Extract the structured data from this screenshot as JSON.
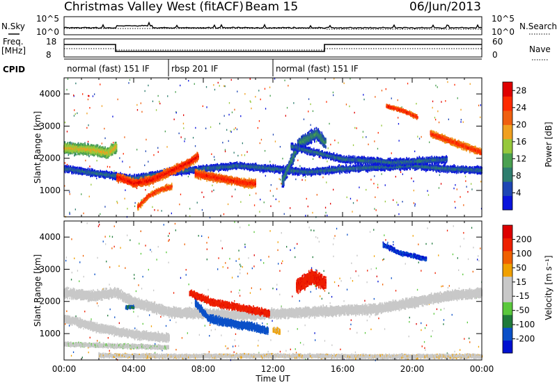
{
  "header": {
    "station": "Christmas Valley West (fitACF)",
    "beam": "Beam 15",
    "date": "06/Jun/2013"
  },
  "strips": {
    "nsky_label": "N.Sky",
    "nsearch_label": "N.Search",
    "noise_ticks": [
      "10^5",
      "10^0"
    ],
    "freq_label_1": "Freq.",
    "freq_label_2": "[MHz]",
    "nave_label": "Nave",
    "freq_ticks": [
      "18",
      "8"
    ],
    "nave_ticks": [
      "60",
      "0"
    ],
    "cpid_label": "CPID"
  },
  "cpid_segments": [
    {
      "label": "normal (fast) 151 IF",
      "start_h": 0,
      "end_h": 6
    },
    {
      "label": "rbsp 201 IF",
      "start_h": 6,
      "end_h": 12
    },
    {
      "label": "normal (fast) 151 IF",
      "start_h": 12,
      "end_h": 24
    }
  ],
  "colors": {
    "power_scale": [
      "#0a14dc",
      "#1e46b4",
      "#2e7d6e",
      "#4aa050",
      "#96c83c",
      "#f0a020",
      "#f06010",
      "#ff2a00",
      "#e00000"
    ],
    "velocity_scale": [
      "#0010d0",
      "#0a50c8",
      "#1f7a3a",
      "#5ac83c",
      "#c8c8c8",
      "#c8c8c8",
      "#f0a000",
      "#f06000",
      "#ee2000",
      "#dd0000"
    ],
    "ground_scatter": "#c0c0c0"
  },
  "chart_data": [
    {
      "type": "heatmap",
      "panel": "power",
      "title": "Christmas Valley West (fitACF) Beam 15 06/Jun/2013",
      "xlabel": "Time UT",
      "ylabel": "Slant Range [km]",
      "xlim": [
        0,
        24
      ],
      "ylim": [
        180,
        4500
      ],
      "xticks": [
        "00:00",
        "04:00",
        "08:00",
        "12:00",
        "16:00",
        "20:00",
        "00:00"
      ],
      "yticks": [
        "1000",
        "2000",
        "3000",
        "4000"
      ],
      "colorbar": {
        "label": "Power [dB]",
        "ticks": [
          "4",
          "8",
          "12",
          "16",
          "20",
          "24",
          "28"
        ],
        "range": [
          0,
          30
        ]
      },
      "bands": [
        {
          "points": [
            [
              0,
              2350
            ],
            [
              1.5,
              2300
            ],
            [
              2.5,
              2200
            ],
            [
              3,
              2400
            ]
          ],
          "width": 400,
          "value": 18
        },
        {
          "points": [
            [
              0,
              1700
            ],
            [
              2,
              1550
            ],
            [
              4,
              1400
            ],
            [
              6,
              1600
            ],
            [
              8,
              1700
            ],
            [
              10,
              1800
            ],
            [
              12,
              1700
            ],
            [
              14,
              1600
            ],
            [
              16,
              1700
            ],
            [
              18,
              1750
            ],
            [
              20,
              1800
            ],
            [
              22,
              1700
            ],
            [
              24,
              1650
            ]
          ],
          "width": 250,
          "value": 8
        },
        {
          "points": [
            [
              3,
              1450
            ],
            [
              4,
              1250
            ],
            [
              5,
              1350
            ],
            [
              6,
              1600
            ],
            [
              7,
              1850
            ],
            [
              7.7,
              2100
            ]
          ],
          "width": 300,
          "value": 28
        },
        {
          "points": [
            [
              4.2,
              500
            ],
            [
              4.8,
              850
            ],
            [
              5.5,
              1050
            ],
            [
              6.2,
              1150
            ]
          ],
          "width": 200,
          "value": 26
        },
        {
          "points": [
            [
              7.5,
              1550
            ],
            [
              8.5,
              1450
            ],
            [
              9.5,
              1350
            ],
            [
              10.5,
              1250
            ],
            [
              11,
              1250
            ]
          ],
          "width": 300,
          "value": 27
        },
        {
          "points": [
            [
              12.5,
              1300
            ],
            [
              13.5,
              2500
            ],
            [
              14.5,
              2800
            ],
            [
              15,
              2500
            ]
          ],
          "width": 450,
          "value": 10
        },
        {
          "points": [
            [
              13,
              2400
            ],
            [
              16,
              2000
            ],
            [
              19,
              1900
            ],
            [
              22,
              2000
            ]
          ],
          "width": 250,
          "value": 8
        },
        {
          "points": [
            [
              18.5,
              3650
            ],
            [
              19.5,
              3500
            ],
            [
              20.3,
              3300
            ]
          ],
          "width": 150,
          "value": 27
        },
        {
          "points": [
            [
              21,
              2800
            ],
            [
              22.5,
              2500
            ],
            [
              24,
              2200
            ]
          ],
          "width": 250,
          "value": 26
        }
      ]
    },
    {
      "type": "heatmap",
      "panel": "velocity",
      "xlabel": "Time UT",
      "ylabel": "Slant Range [km]",
      "xlim": [
        0,
        24
      ],
      "ylim": [
        180,
        4500
      ],
      "xticks": [
        "00:00",
        "04:00",
        "08:00",
        "12:00",
        "16:00",
        "20:00",
        "00:00"
      ],
      "yticks": [
        "1000",
        "2000",
        "3000",
        "4000"
      ],
      "colorbar": {
        "label": "Velocity [m s⁻¹]",
        "ticks": [
          "200",
          "100",
          "50",
          "15",
          "-15",
          "-50",
          "-100",
          "-200"
        ],
        "range": [
          -250,
          250
        ]
      },
      "bands": [
        {
          "points": [
            [
              0,
              2300
            ],
            [
              1.5,
              2200
            ],
            [
              3,
              2300
            ],
            [
              4,
              2000
            ],
            [
              6,
              1700
            ],
            [
              10,
              1600
            ],
            [
              14,
              1700
            ],
            [
              18,
              1800
            ],
            [
              22,
              2200
            ],
            [
              24,
              2300
            ]
          ],
          "width": 350,
          "value": 0
        },
        {
          "points": [
            [
              0,
              1500
            ],
            [
              2,
              1200
            ],
            [
              4,
              1000
            ],
            [
              6,
              900
            ]
          ],
          "width": 300,
          "value": 0
        },
        {
          "points": [
            [
              3.5,
              1850
            ]
          ],
          "width": 120,
          "value": -150
        },
        {
          "points": [
            [
              7.5,
              2000
            ],
            [
              8.3,
              1500
            ],
            [
              9.5,
              1350
            ],
            [
              10.8,
              1250
            ],
            [
              11.7,
              1100
            ]
          ],
          "width": 280,
          "value": -170
        },
        {
          "points": [
            [
              7.2,
              2300
            ],
            [
              8.5,
              2000
            ],
            [
              10.5,
              1800
            ],
            [
              11.8,
              1650
            ]
          ],
          "width": 250,
          "value": 190
        },
        {
          "points": [
            [
              13.3,
              2500
            ],
            [
              14.2,
              2800
            ],
            [
              15,
              2600
            ]
          ],
          "width": 500,
          "value": 190
        },
        {
          "points": [
            [
              18.3,
              3800
            ],
            [
              19.2,
              3550
            ],
            [
              20.8,
              3350
            ]
          ],
          "width": 150,
          "value": -200
        },
        {
          "points": [
            [
              0,
              700
            ],
            [
              6,
              600
            ]
          ],
          "width": 150,
          "value": -40
        },
        {
          "points": [
            [
              12,
              1150
            ],
            [
              12.4,
              1100
            ]
          ],
          "width": 200,
          "value": 60
        },
        {
          "points": [
            [
              2,
              350
            ],
            [
              6,
              330
            ],
            [
              12,
              340
            ],
            [
              18,
              320
            ],
            [
              24,
              330
            ]
          ],
          "width": 140,
          "value": 40
        }
      ]
    }
  ]
}
